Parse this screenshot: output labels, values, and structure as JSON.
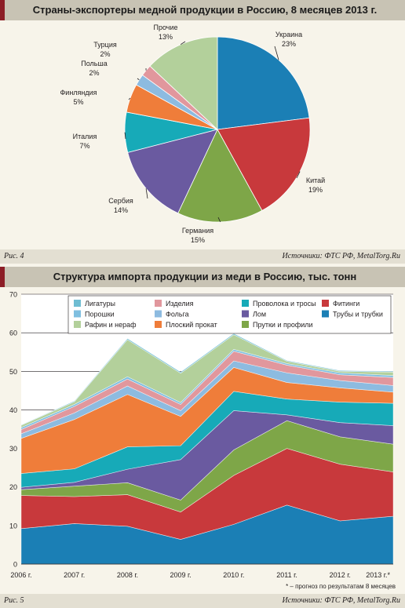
{
  "chart_data": [
    {
      "type": "pie",
      "title": "Страны-экспортеры медной продукции в Россию, 8 месяцев 2013 г.",
      "slices": [
        {
          "name": "Украина",
          "value": 23,
          "label": "23%",
          "color": "#1b7fb5"
        },
        {
          "name": "Китай",
          "value": 19,
          "label": "19%",
          "color": "#c8393c"
        },
        {
          "name": "Германия",
          "value": 15,
          "label": "15%",
          "color": "#7ea648"
        },
        {
          "name": "Сербия",
          "value": 14,
          "label": "14%",
          "color": "#6a5aa0"
        },
        {
          "name": "Италия",
          "value": 7,
          "label": "7%",
          "color": "#17aab8"
        },
        {
          "name": "Финляндия",
          "value": 5,
          "label": "5%",
          "color": "#ef7d3a"
        },
        {
          "name": "Польша",
          "value": 2,
          "label": "2%",
          "color": "#8dbbe0"
        },
        {
          "name": "Турция",
          "value": 2,
          "label": "2%",
          "color": "#e1979d"
        },
        {
          "name": "Прочие",
          "value": 13,
          "label": "13%",
          "color": "#b3d09b"
        }
      ]
    },
    {
      "type": "area",
      "stacked": true,
      "title": "Структура импорта продукции из меди в Россию, тыс. тонн",
      "categories": [
        "2006 г.",
        "2007 г.",
        "2008 г.",
        "2009 г.",
        "2010 г.",
        "2011 г.",
        "2012 г.",
        "2013 г.*"
      ],
      "ylim": [
        0,
        70
      ],
      "yticks": [
        0,
        10,
        20,
        30,
        40,
        50,
        60,
        70
      ],
      "legend_position": "top",
      "series": [
        {
          "name": "Трубы и трубки",
          "color": "#1b7fb5",
          "values": [
            9.2,
            10.5,
            9.8,
            6.4,
            10.3,
            15.3,
            11.2,
            12.4
          ]
        },
        {
          "name": "Фитинги",
          "color": "#c8393c",
          "values": [
            8.6,
            7.0,
            8.2,
            7.1,
            12.7,
            14.7,
            14.7,
            11.5
          ]
        },
        {
          "name": "Прутки и профили",
          "color": "#7ea648",
          "values": [
            1.5,
            2.7,
            3.1,
            3.1,
            6.6,
            7.2,
            7.1,
            7.2
          ]
        },
        {
          "name": "Лом",
          "color": "#6a5aa0",
          "values": [
            0.6,
            1.0,
            3.5,
            10.5,
            10.2,
            1.5,
            3.7,
            4.8
          ]
        },
        {
          "name": "Проволока и тросы",
          "color": "#17aab8",
          "values": [
            3.6,
            3.5,
            5.8,
            3.6,
            5.0,
            4.1,
            5.3,
            5.8
          ]
        },
        {
          "name": "Плоский прокат",
          "color": "#ef7d3a",
          "values": [
            9.1,
            12.8,
            13.6,
            7.6,
            6.2,
            4.3,
            3.7,
            2.9
          ]
        },
        {
          "name": "Фольга",
          "color": "#8dbbe0",
          "values": [
            1.2,
            1.7,
            2.2,
            1.5,
            1.7,
            2.5,
            1.9,
            1.7
          ]
        },
        {
          "name": "Изделия",
          "color": "#e1979d",
          "values": [
            1.1,
            1.7,
            1.8,
            1.6,
            2.5,
            2.0,
            1.5,
            2.1
          ]
        },
        {
          "name": "Порошки",
          "color": "#7fbfe0",
          "values": [
            0.5,
            0.5,
            0.6,
            0.5,
            0.5,
            0.4,
            0.5,
            0.5
          ]
        },
        {
          "name": "Рафин и нераф",
          "color": "#b3d09b",
          "values": [
            0.6,
            0.7,
            9.6,
            7.6,
            3.8,
            0.6,
            0.4,
            0.9
          ]
        },
        {
          "name": "Лигатуры",
          "color": "#6fbdd2",
          "values": [
            0.1,
            0.2,
            0.3,
            0.3,
            0.3,
            0.2,
            0.2,
            0.2
          ]
        }
      ],
      "legend_order": [
        "Лигатуры",
        "Изделия",
        "Проволока и тросы",
        "Фитинги",
        "Порошки",
        "Фольга",
        "Лом",
        "Трубы и трубки",
        "Рафин и нераф",
        "Плоский прокат",
        "Прутки и профили"
      ]
    }
  ],
  "fig4": {
    "label": "Рис. 4",
    "source": "Источники: ФТС РФ, MetalTorg.Ru"
  },
  "fig5": {
    "label": "Рис. 5",
    "source": "Источники: ФТС РФ, MetalTorg.Ru",
    "note": "* – прогноз по результатам 8 месяцев"
  }
}
